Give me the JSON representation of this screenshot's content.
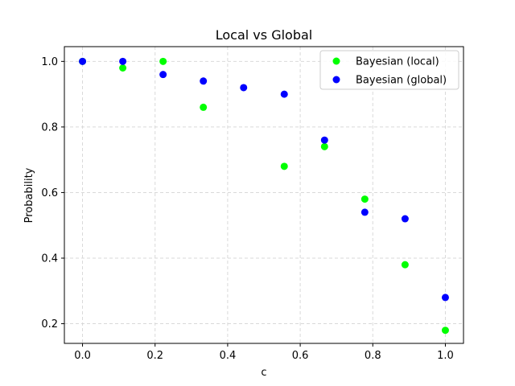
{
  "chart_data": {
    "type": "scatter",
    "title": "Local vs Global",
    "xlabel": "c",
    "ylabel": "Probability",
    "xlim": [
      -0.05,
      1.05
    ],
    "ylim": [
      0.14,
      1.045
    ],
    "xticks": [
      0.0,
      0.2,
      0.4,
      0.6,
      0.8,
      1.0
    ],
    "xtick_labels": [
      "0.0",
      "0.2",
      "0.4",
      "0.6",
      "0.8",
      "1.0"
    ],
    "yticks": [
      0.2,
      0.4,
      0.6,
      0.8,
      1.0
    ],
    "ytick_labels": [
      "0.2",
      "0.4",
      "0.6",
      "0.8",
      "1.0"
    ],
    "grid": true,
    "legend_position": "top-right",
    "series": [
      {
        "name": "Bayesian (local)",
        "color": "#00ff00",
        "x": [
          0.0,
          0.111,
          0.222,
          0.333,
          0.556,
          0.667,
          0.778,
          0.889,
          1.0
        ],
        "y": [
          1.0,
          0.98,
          1.0,
          0.86,
          0.68,
          0.74,
          0.58,
          0.38,
          0.18
        ]
      },
      {
        "name": "Bayesian (global)",
        "color": "#0000ff",
        "x": [
          0.0,
          0.111,
          0.222,
          0.333,
          0.444,
          0.556,
          0.667,
          0.778,
          0.889,
          1.0
        ],
        "y": [
          1.0,
          1.0,
          0.96,
          0.94,
          0.92,
          0.9,
          0.76,
          0.54,
          0.52,
          0.28
        ]
      }
    ]
  }
}
